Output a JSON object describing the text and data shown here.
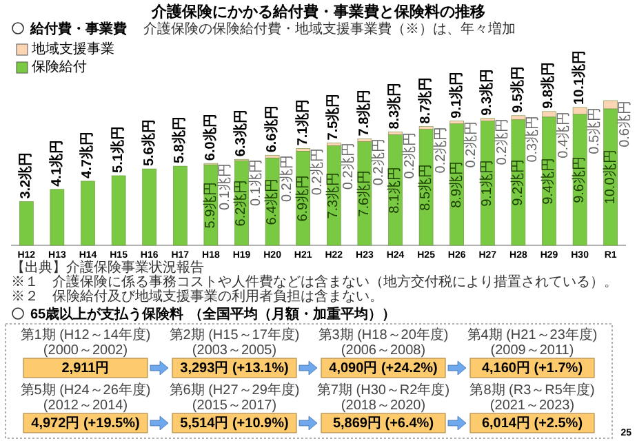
{
  "chart_data": [
    {
      "type": "bar",
      "stacked": true,
      "legend": "top left",
      "title": "介護保険にかかる給付費・事業費と保険料の推移",
      "subtitle": "給付費・事業費",
      "annotations": [
        "介護保険の保険給付費・地域支援事業費（※）は、年々増加",
        "【出典】介護保険事業状況報告",
        "※１　介護保険に係る事務コストや人件費などは含まない（地方交付税により措置されている）。",
        "※２　保険給付及び地域支援事業の利用者負担は含まない。"
      ],
      "categories": [
        "H12",
        "H13",
        "H14",
        "H15",
        "H16",
        "H17",
        "H18",
        "H19",
        "H20",
        "H21",
        "H22",
        "H23",
        "H24",
        "H25",
        "H26",
        "H27",
        "H28",
        "H29",
        "H30",
        "R1"
      ],
      "series": [
        {
          "name": "保険給付",
          "color": "#7ac943",
          "values": [
            3.2,
            4.1,
            4.7,
            5.1,
            5.6,
            5.8,
            5.9,
            6.2,
            6.4,
            6.9,
            7.3,
            7.6,
            8.1,
            8.5,
            8.9,
            9.1,
            9.2,
            9.4,
            9.6,
            10.0
          ],
          "value_labels": [
            null,
            null,
            null,
            null,
            null,
            null,
            "5.9兆円",
            "6.2兆円",
            "6.4兆円",
            "6.9兆円",
            "7.3兆円",
            "7.6兆円",
            "8.1兆円",
            "8.5兆円",
            "8.9兆円",
            "9.1兆円",
            "9.2兆円",
            "9.4兆円",
            "9.6兆円",
            "10.0兆円"
          ]
        },
        {
          "name": "地域支援事業",
          "color": "#fcd5b4",
          "values": [
            null,
            null,
            null,
            null,
            null,
            null,
            0.1,
            0.1,
            0.2,
            0.2,
            0.2,
            0.2,
            0.2,
            0.2,
            0.2,
            0.2,
            0.3,
            0.4,
            0.5,
            0.6
          ],
          "value_labels": [
            null,
            null,
            null,
            null,
            null,
            null,
            "0.1兆円",
            "0.1兆円",
            "0.2兆円",
            "0.2兆円",
            "0.2兆円",
            "0.2兆円",
            "0.2兆円",
            "0.2兆円",
            "0.2兆円",
            "0.2兆円",
            "0.3兆円",
            "0.4兆円",
            "0.5兆円",
            "0.6兆円"
          ]
        }
      ],
      "totals": [
        "3.2兆円",
        "4.1兆円",
        "4.7兆円",
        "5.1兆円",
        "5.6兆円",
        "5.8兆円",
        "6.0兆円",
        "6.3兆円",
        "6.6兆円",
        "7.1兆円",
        "7.5兆円",
        "7.8兆円",
        "8.3兆円",
        "8.7兆円",
        "9.1兆円",
        "9.3兆円",
        "9.5兆円",
        "9.8兆円",
        "10.1兆円",
        null
      ]
    },
    {
      "type": "other",
      "title": "65歳以上が支払う保険料",
      "subtitle": "（全国平均（月額・加重平均））",
      "color": "#fdcb6e",
      "categories": [
        "第1期\n(H12～14年度)\n(2000～2002)",
        "第2期\n(H15～17年度)\n(2003～2005)",
        "第3期\n(H18～20年度)\n(2006～2008)",
        "第4期\n(H21～23年度)\n(2009～2011)",
        "第5期\n(H24～26年度)\n(2012～2014)",
        "第6期\n(H27～29年度)\n(2015～2017)",
        "第7期\n(H30～R2年度)\n(2018～2020)",
        "第8期\n(R3～R5年度)\n(2021～2023)"
      ],
      "value_labels": [
        "2,911円",
        "3,293円 (+13.1%)",
        "4,090円 (+24.2%)",
        "4,160円 (+1.7%)",
        "4,972円 (+19.5%)",
        "5,514円 (+10.9%)",
        "5,869円 (+6.4%)",
        "6,014円 (+2.5%)"
      ],
      "annotations": [
        "25"
      ]
    }
  ]
}
